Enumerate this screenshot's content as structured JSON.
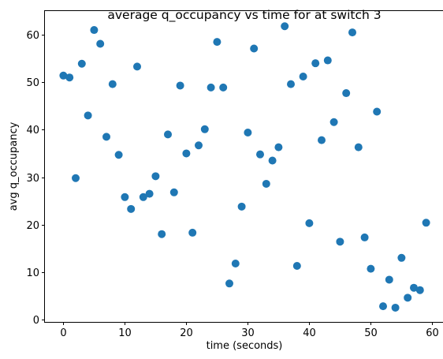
{
  "chart_data": {
    "type": "scatter",
    "title": "average q_occupancy vs time for at switch 3",
    "xlabel": "time (seconds)",
    "ylabel": "avg q_occupancy",
    "xlim": [
      -3,
      62
    ],
    "ylim": [
      -0.5,
      65
    ],
    "xticks": [
      0,
      10,
      20,
      30,
      40,
      50,
      60
    ],
    "yticks": [
      0,
      10,
      20,
      30,
      40,
      50,
      60
    ],
    "grid": false,
    "marker_color": "#1f77b4",
    "series": [
      {
        "x": [
          0,
          1,
          2,
          3,
          4,
          5,
          6,
          7,
          8,
          9,
          10,
          11,
          12,
          13,
          14,
          15,
          16,
          17,
          18,
          19,
          20,
          21,
          22,
          23,
          24,
          25,
          26,
          27,
          28,
          29,
          30,
          31,
          32,
          33,
          34,
          35,
          36,
          37,
          38,
          39,
          40,
          41,
          42,
          43,
          44,
          45,
          46,
          47,
          48,
          49,
          50,
          51,
          52,
          53,
          54,
          55,
          56,
          57,
          58,
          59
        ],
        "y": [
          51.4,
          51.0,
          29.8,
          53.9,
          43.0,
          61.0,
          58.1,
          38.5,
          49.6,
          34.7,
          25.8,
          23.3,
          53.3,
          25.8,
          26.5,
          30.2,
          18.0,
          39.0,
          26.8,
          49.3,
          35.0,
          18.3,
          36.7,
          40.1,
          48.9,
          58.5,
          48.9,
          7.6,
          11.8,
          23.8,
          39.4,
          57.1,
          34.8,
          28.6,
          33.5,
          36.3,
          61.8,
          49.6,
          11.3,
          51.2,
          20.3,
          54.0,
          37.8,
          54.6,
          41.6,
          16.4,
          47.7,
          60.5,
          36.3,
          17.3,
          10.7,
          43.8,
          2.8,
          8.4,
          2.5,
          13.0,
          4.6,
          6.7,
          6.2,
          20.4
        ]
      }
    ]
  }
}
